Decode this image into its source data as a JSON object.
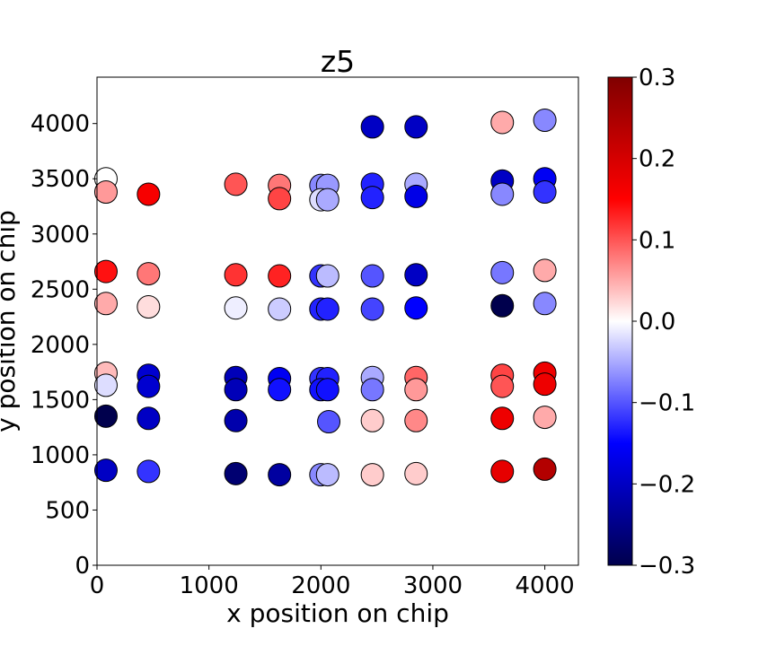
{
  "chart_data": {
    "type": "scatter",
    "title": "z5",
    "xlabel": "x position on chip",
    "ylabel": "y position on chip",
    "xlim": [
      0,
      4300
    ],
    "ylim": [
      0,
      4420
    ],
    "xticks": [
      0,
      1000,
      2000,
      3000,
      4000
    ],
    "yticks": [
      0,
      500,
      1000,
      1500,
      2000,
      2500,
      3000,
      3500,
      4000
    ],
    "grid": false,
    "colormap": "seismic",
    "colorbar": {
      "range": [
        -0.3,
        0.3
      ],
      "ticks": [
        -0.3,
        -0.2,
        -0.1,
        0.0,
        0.1,
        0.2,
        0.3
      ],
      "tick_labels": [
        "−0.3",
        "−0.2",
        "−0.1",
        "0.0",
        "0.1",
        "0.2",
        "0.3"
      ]
    },
    "points": [
      {
        "x": 80,
        "y": 3500,
        "v": 0.0
      },
      {
        "x": 80,
        "y": 3380,
        "v": 0.06
      },
      {
        "x": 460,
        "y": 3360,
        "v": 0.16
      },
      {
        "x": 1240,
        "y": 3450,
        "v": 0.1
      },
      {
        "x": 1630,
        "y": 3440,
        "v": 0.08
      },
      {
        "x": 1630,
        "y": 3320,
        "v": 0.11
      },
      {
        "x": 2000,
        "y": 3440,
        "v": -0.07
      },
      {
        "x": 2060,
        "y": 3440,
        "v": -0.06
      },
      {
        "x": 2000,
        "y": 3310,
        "v": -0.02
      },
      {
        "x": 2060,
        "y": 3310,
        "v": -0.05
      },
      {
        "x": 2460,
        "y": 3970,
        "v": -0.2
      },
      {
        "x": 2460,
        "y": 3450,
        "v": -0.13
      },
      {
        "x": 2460,
        "y": 3330,
        "v": -0.13
      },
      {
        "x": 2850,
        "y": 3970,
        "v": -0.2
      },
      {
        "x": 2850,
        "y": 3450,
        "v": -0.05
      },
      {
        "x": 2850,
        "y": 3340,
        "v": -0.17
      },
      {
        "x": 3620,
        "y": 4010,
        "v": 0.05
      },
      {
        "x": 3620,
        "y": 3480,
        "v": -0.2
      },
      {
        "x": 3620,
        "y": 3360,
        "v": -0.07
      },
      {
        "x": 4000,
        "y": 4030,
        "v": -0.07
      },
      {
        "x": 4000,
        "y": 3500,
        "v": -0.16
      },
      {
        "x": 4000,
        "y": 3380,
        "v": -0.12
      },
      {
        "x": 80,
        "y": 2660,
        "v": 0.14
      },
      {
        "x": 80,
        "y": 2370,
        "v": 0.05
      },
      {
        "x": 460,
        "y": 2640,
        "v": 0.08
      },
      {
        "x": 460,
        "y": 2340,
        "v": 0.02
      },
      {
        "x": 1240,
        "y": 2630,
        "v": 0.12
      },
      {
        "x": 1240,
        "y": 2330,
        "v": -0.01
      },
      {
        "x": 1630,
        "y": 2620,
        "v": 0.13
      },
      {
        "x": 1630,
        "y": 2320,
        "v": -0.03
      },
      {
        "x": 2000,
        "y": 2620,
        "v": -0.12
      },
      {
        "x": 2060,
        "y": 2620,
        "v": -0.04
      },
      {
        "x": 2000,
        "y": 2320,
        "v": -0.13
      },
      {
        "x": 2060,
        "y": 2320,
        "v": -0.13
      },
      {
        "x": 2460,
        "y": 2620,
        "v": -0.1
      },
      {
        "x": 2460,
        "y": 2320,
        "v": -0.11
      },
      {
        "x": 2850,
        "y": 2630,
        "v": -0.2
      },
      {
        "x": 2850,
        "y": 2330,
        "v": -0.15
      },
      {
        "x": 3620,
        "y": 2650,
        "v": -0.08
      },
      {
        "x": 3620,
        "y": 2350,
        "v": -0.3
      },
      {
        "x": 4000,
        "y": 2670,
        "v": 0.05
      },
      {
        "x": 4000,
        "y": 2370,
        "v": -0.07
      },
      {
        "x": 80,
        "y": 1740,
        "v": 0.04
      },
      {
        "x": 80,
        "y": 1630,
        "v": -0.02
      },
      {
        "x": 80,
        "y": 1350,
        "v": -0.3
      },
      {
        "x": 80,
        "y": 860,
        "v": -0.2
      },
      {
        "x": 460,
        "y": 1720,
        "v": -0.19
      },
      {
        "x": 460,
        "y": 1620,
        "v": -0.19
      },
      {
        "x": 460,
        "y": 1330,
        "v": -0.2
      },
      {
        "x": 460,
        "y": 850,
        "v": -0.12
      },
      {
        "x": 1240,
        "y": 1700,
        "v": -0.21
      },
      {
        "x": 1240,
        "y": 1590,
        "v": -0.21
      },
      {
        "x": 1240,
        "y": 1310,
        "v": -0.22
      },
      {
        "x": 1240,
        "y": 830,
        "v": -0.27
      },
      {
        "x": 1630,
        "y": 1690,
        "v": -0.16
      },
      {
        "x": 1630,
        "y": 1590,
        "v": -0.14
      },
      {
        "x": 1630,
        "y": 820,
        "v": -0.23
      },
      {
        "x": 2000,
        "y": 1690,
        "v": -0.12
      },
      {
        "x": 2060,
        "y": 1690,
        "v": -0.13
      },
      {
        "x": 2000,
        "y": 1590,
        "v": -0.14
      },
      {
        "x": 2060,
        "y": 1590,
        "v": -0.14
      },
      {
        "x": 2070,
        "y": 1300,
        "v": -0.1
      },
      {
        "x": 2000,
        "y": 820,
        "v": -0.07
      },
      {
        "x": 2060,
        "y": 820,
        "v": -0.04
      },
      {
        "x": 2460,
        "y": 1700,
        "v": -0.05
      },
      {
        "x": 2460,
        "y": 1590,
        "v": -0.08
      },
      {
        "x": 2460,
        "y": 1310,
        "v": 0.03
      },
      {
        "x": 2460,
        "y": 820,
        "v": 0.03
      },
      {
        "x": 2850,
        "y": 1700,
        "v": 0.09
      },
      {
        "x": 2850,
        "y": 1590,
        "v": 0.06
      },
      {
        "x": 2850,
        "y": 1310,
        "v": 0.07
      },
      {
        "x": 2850,
        "y": 830,
        "v": 0.03
      },
      {
        "x": 3620,
        "y": 1720,
        "v": 0.11
      },
      {
        "x": 3620,
        "y": 1620,
        "v": 0.1
      },
      {
        "x": 3620,
        "y": 1330,
        "v": 0.17
      },
      {
        "x": 3620,
        "y": 850,
        "v": 0.18
      },
      {
        "x": 4000,
        "y": 1740,
        "v": 0.17
      },
      {
        "x": 4000,
        "y": 1640,
        "v": 0.17
      },
      {
        "x": 4000,
        "y": 1340,
        "v": 0.05
      },
      {
        "x": 4000,
        "y": 870,
        "v": 0.24
      }
    ]
  }
}
